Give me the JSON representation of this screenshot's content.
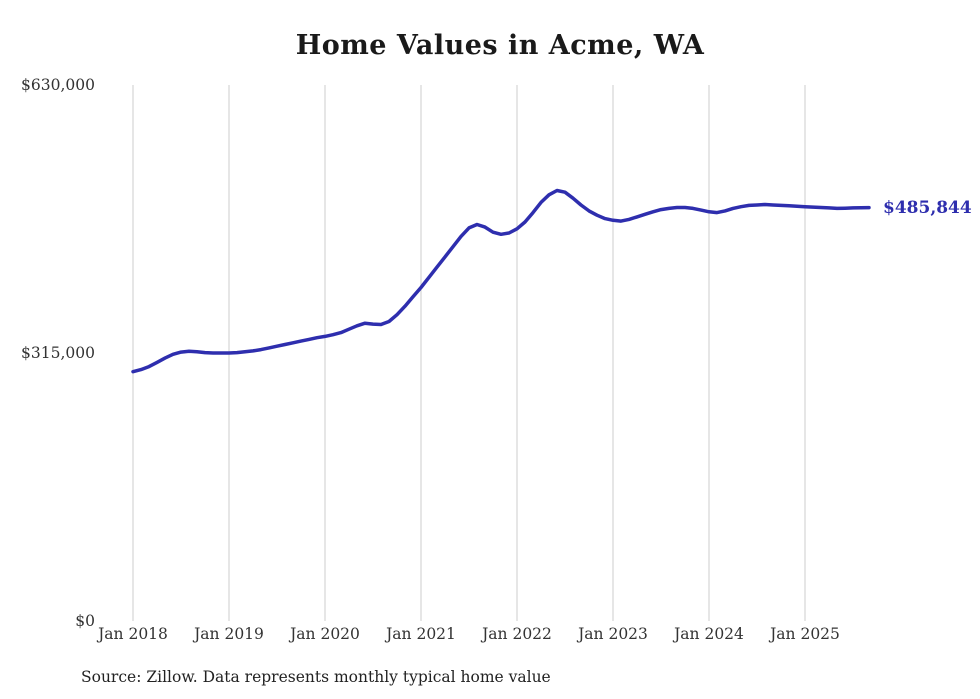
{
  "chart_data": {
    "type": "line",
    "title": "Home Values in Acme, WA",
    "series_name": "Typical home value",
    "start_month": "Jan 2018",
    "end_month": "Sep 2025",
    "x_ticks": [
      "Jan 2018",
      "Jan 2019",
      "Jan 2020",
      "Jan 2021",
      "Jan 2022",
      "Jan 2023",
      "Jan 2024",
      "Jan 2025"
    ],
    "y_ticks": [
      {
        "label": "$630,000",
        "value": 630000
      },
      {
        "label": "$315,000",
        "value": 315000
      },
      {
        "label": "$0",
        "value": 0
      }
    ],
    "ylim": [
      0,
      630000
    ],
    "grid": "vertical-only",
    "line_color": "#2e2eae",
    "grid_color": "#cccccc",
    "end_label": "$485,844",
    "end_value": 485844,
    "values": [
      293000,
      295500,
      299000,
      304000,
      309000,
      313500,
      316000,
      317000,
      316500,
      315500,
      315000,
      315000,
      315000,
      315500,
      316500,
      317500,
      319000,
      321000,
      323000,
      325000,
      327000,
      329000,
      331000,
      333000,
      334500,
      336500,
      339000,
      343000,
      347000,
      350000,
      349000,
      348500,
      352000,
      360000,
      370000,
      381000,
      392000,
      404000,
      416000,
      428000,
      440000,
      452000,
      462000,
      466000,
      463000,
      457000,
      454500,
      456000,
      461000,
      469000,
      480000,
      492000,
      501000,
      506000,
      504000,
      497000,
      489000,
      482000,
      477000,
      473000,
      471000,
      470000,
      472000,
      475000,
      478000,
      481000,
      483500,
      485000,
      486000,
      486000,
      485000,
      483000,
      481000,
      480000,
      482000,
      485000,
      487000,
      488500,
      489000,
      489500,
      489000,
      488500,
      488000,
      487500,
      487000,
      486500,
      486000,
      485500,
      485000,
      485200,
      485500,
      485800,
      485844
    ]
  },
  "source_note": "Source: Zillow. Data represents monthly typical home value"
}
